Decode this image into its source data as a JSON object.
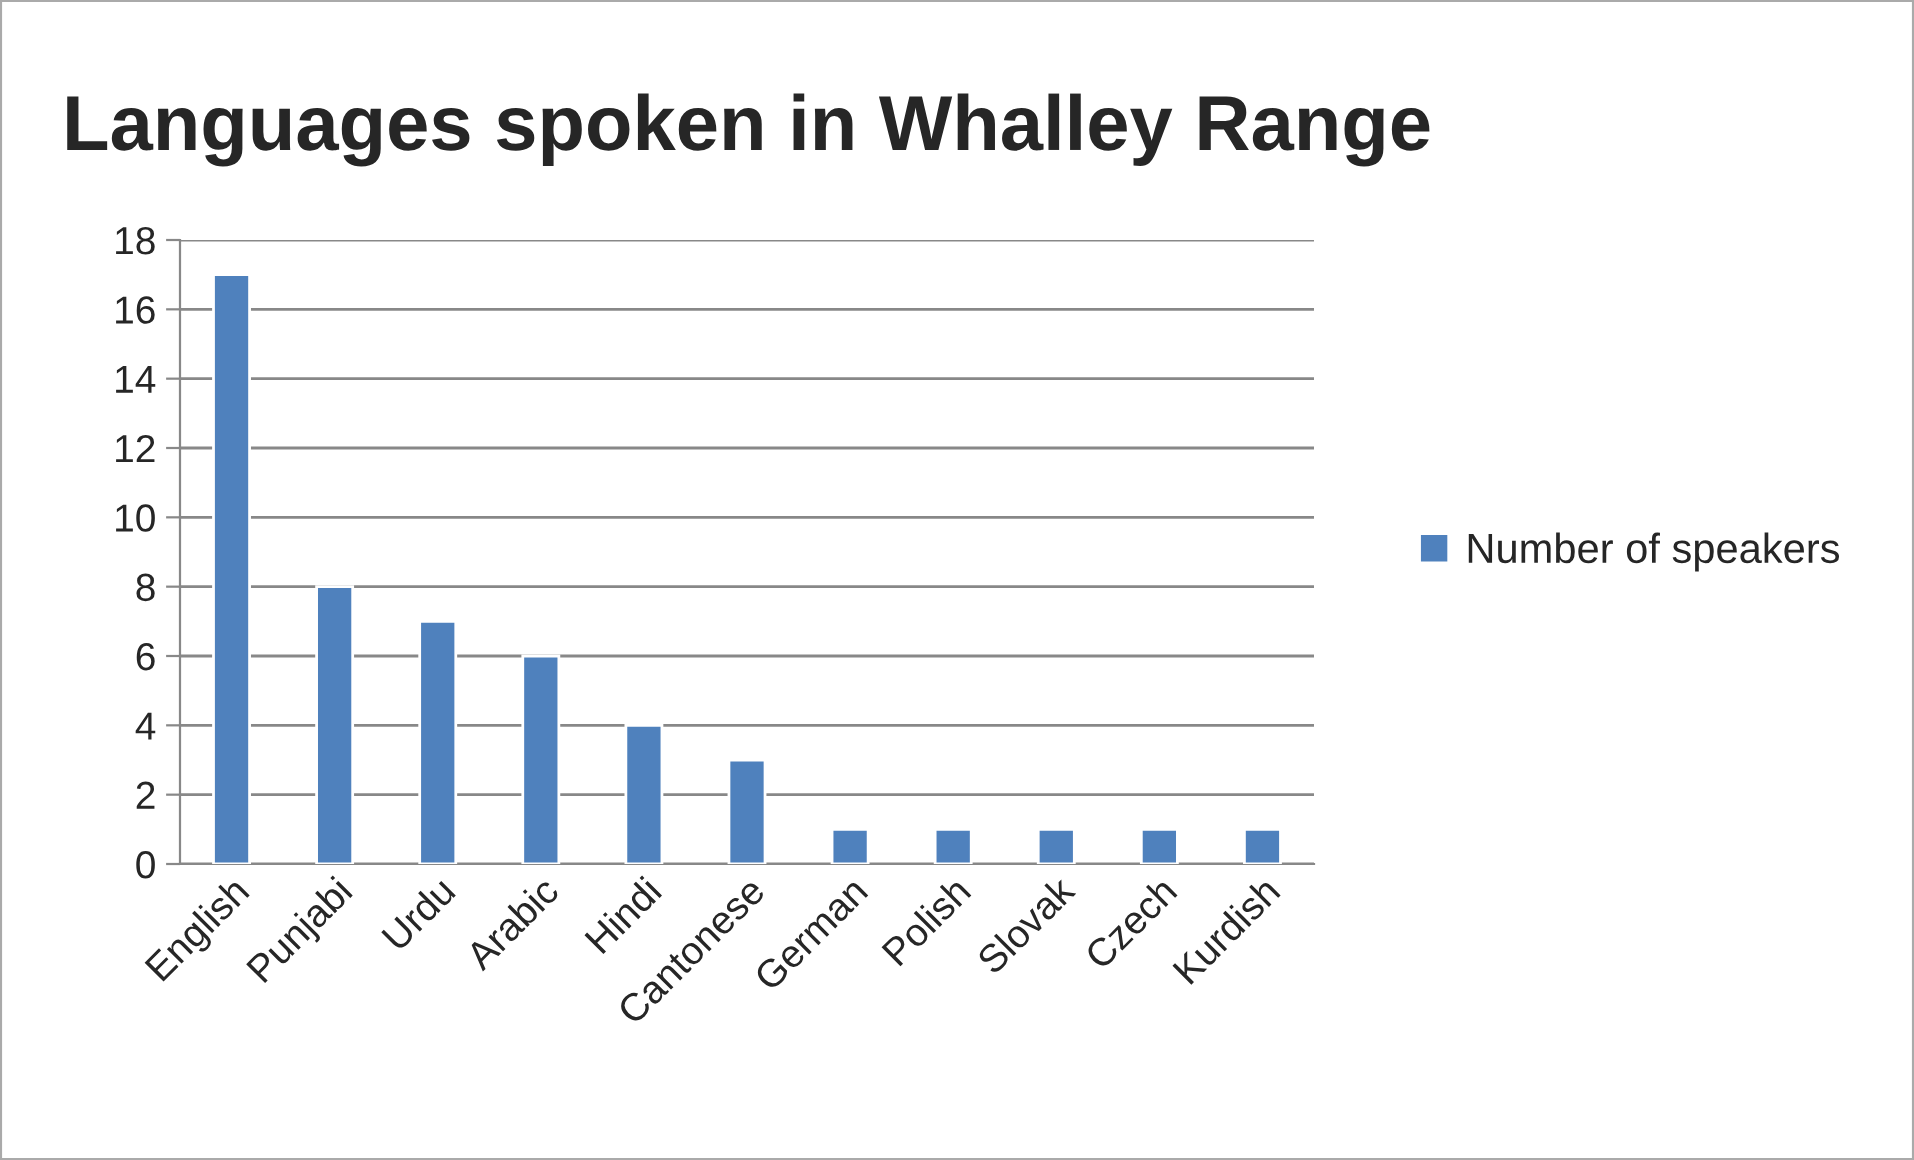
{
  "chart_data": {
    "type": "bar",
    "title": "Languages spoken in Whalley Range",
    "categories": [
      "English",
      "Punjabi",
      "Urdu",
      "Arabic",
      "Hindi",
      "Cantonese",
      "German",
      "Polish",
      "Slovak",
      "Czech",
      "Kurdish"
    ],
    "series": [
      {
        "name": "Number of speakers",
        "color": "#4f81bd",
        "values": [
          17,
          8,
          7,
          6,
          4,
          3,
          1,
          1,
          1,
          1,
          1
        ]
      }
    ],
    "ylim": [
      0,
      18
    ],
    "yticks": [
      0,
      2,
      4,
      6,
      8,
      10,
      12,
      14,
      16,
      18
    ],
    "grid": "y",
    "legend": "right"
  }
}
